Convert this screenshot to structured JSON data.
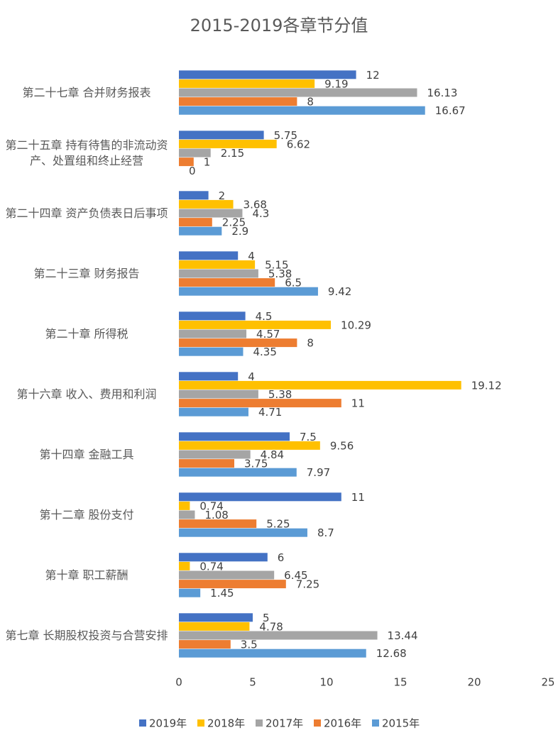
{
  "chart_data": {
    "type": "hbar",
    "title": "2015-2019各章节分值",
    "categories": [
      "第二十七章 合并财务报表",
      "第二十五章 持有待售的非流动资产、处置组和终止经营",
      "第二十四章 资产负债表日后事项",
      "第二十三章 财务报告",
      "第二十章 所得税",
      "第十六章 收入、费用和利润",
      "第十四章 金融工具",
      "第十二章 股份支付",
      "第十章 职工薪酬",
      "第七章 长期股权投资与合营安排"
    ],
    "series": [
      {
        "name": "2019年",
        "color": "#4472c4",
        "values": [
          12,
          5.75,
          2,
          4,
          4.5,
          4,
          7.5,
          11,
          6,
          5
        ]
      },
      {
        "name": "2018年",
        "color": "#ffc000",
        "values": [
          9.19,
          6.62,
          3.68,
          5.15,
          10.29,
          19.12,
          9.56,
          0.74,
          0.74,
          4.78
        ]
      },
      {
        "name": "2017年",
        "color": "#a5a5a5",
        "values": [
          16.13,
          2.15,
          4.3,
          5.38,
          4.57,
          5.38,
          4.84,
          1.08,
          6.45,
          13.44
        ]
      },
      {
        "name": "2016年",
        "color": "#ed7d31",
        "values": [
          8,
          1,
          2.25,
          6.5,
          8,
          11,
          3.75,
          5.25,
          7.25,
          3.5
        ]
      },
      {
        "name": "2015年",
        "color": "#5b9bd5",
        "values": [
          16.67,
          0,
          2.9,
          9.42,
          4.35,
          4.71,
          7.97,
          8.7,
          1.45,
          12.68
        ]
      }
    ],
    "xlim": [
      0,
      25
    ],
    "xticks": [
      0,
      5,
      10,
      15,
      20,
      25
    ],
    "grid": false,
    "legend": "bottom"
  }
}
